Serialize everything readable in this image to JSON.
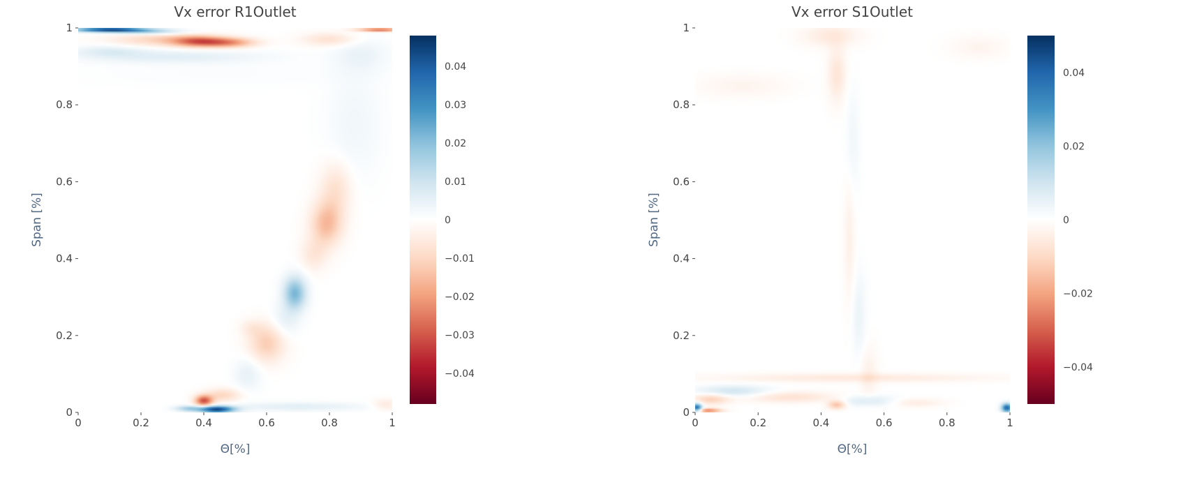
{
  "chart_data": [
    {
      "type": "heatmap",
      "title": "Vx error R1Outlet",
      "xlabel": "Θ[%]",
      "ylabel": "Span [%]",
      "xlim": [
        0,
        1
      ],
      "ylim": [
        0,
        1
      ],
      "x_ticks": [
        "0",
        "0.2",
        "0.4",
        "0.6",
        "0.8",
        "1"
      ],
      "y_ticks": [
        "0",
        "0.2",
        "0.4",
        "0.6",
        "0.8",
        "1"
      ],
      "colorscale": [
        "#67001f",
        "#b2182b",
        "#d6604d",
        "#f4a582",
        "#fddbc7",
        "#ffffff",
        "#d1e5f0",
        "#92c5de",
        "#4393c3",
        "#2166ac",
        "#053061"
      ],
      "zlim": [
        -0.048,
        0.048
      ],
      "colorbar_ticks": [
        {
          "value": 0.04,
          "label": "0.04"
        },
        {
          "value": 0.03,
          "label": "0.03"
        },
        {
          "value": 0.02,
          "label": "0.02"
        },
        {
          "value": 0.01,
          "label": "0.01"
        },
        {
          "value": 0,
          "label": "0"
        },
        {
          "value": -0.01,
          "label": "−0.01"
        },
        {
          "value": -0.02,
          "label": "−0.02"
        },
        {
          "value": -0.03,
          "label": "−0.03"
        },
        {
          "value": -0.04,
          "label": "−0.04"
        }
      ],
      "features": [
        {
          "x": 0.1,
          "y": 0.995,
          "v": 0.045,
          "sx": 0.08,
          "sy": 0.004
        },
        {
          "x": 0.22,
          "y": 0.99,
          "v": 0.015,
          "sx": 0.08,
          "sy": 0.005
        },
        {
          "x": 0.96,
          "y": 0.995,
          "v": -0.03,
          "sx": 0.05,
          "sy": 0.003
        },
        {
          "x": 0.38,
          "y": 0.965,
          "v": -0.025,
          "sx": 0.06,
          "sy": 0.01
        },
        {
          "x": 0.48,
          "y": 0.962,
          "v": -0.02,
          "sx": 0.06,
          "sy": 0.009
        },
        {
          "x": 0.25,
          "y": 0.97,
          "v": -0.01,
          "sx": 0.1,
          "sy": 0.012
        },
        {
          "x": 0.8,
          "y": 0.97,
          "v": -0.008,
          "sx": 0.06,
          "sy": 0.012
        },
        {
          "x": 0.3,
          "y": 0.925,
          "v": 0.006,
          "sx": 0.2,
          "sy": 0.012
        },
        {
          "x": 0.1,
          "y": 0.94,
          "v": 0.006,
          "sx": 0.08,
          "sy": 0.01
        },
        {
          "x": 0.9,
          "y": 0.93,
          "v": 0.004,
          "sx": 0.06,
          "sy": 0.03
        },
        {
          "x": 0.45,
          "y": 0.88,
          "v": 0.001,
          "sx": 0.3,
          "sy": 0.02
        },
        {
          "x": 0.79,
          "y": 0.49,
          "v": -0.015,
          "sx": 0.035,
          "sy": 0.04
        },
        {
          "x": 0.82,
          "y": 0.58,
          "v": -0.008,
          "sx": 0.035,
          "sy": 0.05
        },
        {
          "x": 0.75,
          "y": 0.41,
          "v": -0.006,
          "sx": 0.03,
          "sy": 0.03
        },
        {
          "x": 0.69,
          "y": 0.31,
          "v": 0.022,
          "sx": 0.025,
          "sy": 0.03
        },
        {
          "x": 0.66,
          "y": 0.24,
          "v": 0.005,
          "sx": 0.03,
          "sy": 0.03
        },
        {
          "x": 0.6,
          "y": 0.18,
          "v": -0.012,
          "sx": 0.04,
          "sy": 0.035
        },
        {
          "x": 0.54,
          "y": 0.1,
          "v": 0.005,
          "sx": 0.03,
          "sy": 0.03
        },
        {
          "x": 0.55,
          "y": 0.22,
          "v": -0.004,
          "sx": 0.025,
          "sy": 0.015
        },
        {
          "x": 0.44,
          "y": 0.008,
          "v": 0.045,
          "sx": 0.04,
          "sy": 0.006
        },
        {
          "x": 0.4,
          "y": 0.03,
          "v": -0.03,
          "sx": 0.02,
          "sy": 0.01
        },
        {
          "x": 0.46,
          "y": 0.045,
          "v": -0.01,
          "sx": 0.04,
          "sy": 0.012
        },
        {
          "x": 0.35,
          "y": 0.01,
          "v": 0.015,
          "sx": 0.03,
          "sy": 0.005
        },
        {
          "x": 0.7,
          "y": 0.015,
          "v": 0.006,
          "sx": 0.15,
          "sy": 0.008
        },
        {
          "x": 0.98,
          "y": 0.02,
          "v": -0.006,
          "sx": 0.03,
          "sy": 0.01
        },
        {
          "x": 0.88,
          "y": 0.75,
          "v": 0.003,
          "sx": 0.06,
          "sy": 0.1
        }
      ]
    },
    {
      "type": "heatmap",
      "title": "Vx error S1Outlet",
      "xlabel": "Θ[%]",
      "ylabel": "Span [%]",
      "xlim": [
        0,
        1
      ],
      "ylim": [
        0,
        1
      ],
      "x_ticks": [
        "0",
        "0.2",
        "0.4",
        "0.6",
        "0.8",
        "1"
      ],
      "y_ticks": [
        "0",
        "0.2",
        "0.4",
        "0.6",
        "0.8",
        "1"
      ],
      "colorscale": [
        "#67001f",
        "#b2182b",
        "#d6604d",
        "#f4a582",
        "#fddbc7",
        "#ffffff",
        "#d1e5f0",
        "#92c5de",
        "#4393c3",
        "#2166ac",
        "#053061"
      ],
      "zlim": [
        -0.05,
        0.05
      ],
      "colorbar_ticks": [
        {
          "value": 0.04,
          "label": "0.04"
        },
        {
          "value": 0.02,
          "label": "0.02"
        },
        {
          "value": 0,
          "label": "0"
        },
        {
          "value": -0.02,
          "label": "−0.02"
        },
        {
          "value": -0.04,
          "label": "−0.04"
        }
      ],
      "features": [
        {
          "x": 0.43,
          "y": 0.98,
          "v": -0.006,
          "sx": 0.06,
          "sy": 0.02
        },
        {
          "x": 0.45,
          "y": 0.88,
          "v": -0.007,
          "sx": 0.02,
          "sy": 0.05
        },
        {
          "x": 0.5,
          "y": 0.7,
          "v": 0.003,
          "sx": 0.015,
          "sy": 0.1
        },
        {
          "x": 0.49,
          "y": 0.45,
          "v": -0.004,
          "sx": 0.012,
          "sy": 0.12
        },
        {
          "x": 0.52,
          "y": 0.25,
          "v": 0.004,
          "sx": 0.015,
          "sy": 0.08
        },
        {
          "x": 0.55,
          "y": 0.1,
          "v": -0.004,
          "sx": 0.02,
          "sy": 0.05
        },
        {
          "x": 0.15,
          "y": 0.85,
          "v": -0.003,
          "sx": 0.1,
          "sy": 0.02
        },
        {
          "x": 0.9,
          "y": 0.95,
          "v": -0.003,
          "sx": 0.06,
          "sy": 0.02
        },
        {
          "x": 0.5,
          "y": 0.09,
          "v": -0.006,
          "sx": 0.3,
          "sy": 0.008
        },
        {
          "x": 0.12,
          "y": 0.055,
          "v": 0.01,
          "sx": 0.08,
          "sy": 0.01
        },
        {
          "x": 0.05,
          "y": 0.035,
          "v": -0.012,
          "sx": 0.04,
          "sy": 0.01
        },
        {
          "x": 0.3,
          "y": 0.04,
          "v": -0.008,
          "sx": 0.1,
          "sy": 0.01
        },
        {
          "x": 0.005,
          "y": 0.012,
          "v": 0.04,
          "sx": 0.012,
          "sy": 0.008
        },
        {
          "x": 0.04,
          "y": 0.005,
          "v": -0.025,
          "sx": 0.03,
          "sy": 0.004
        },
        {
          "x": 0.99,
          "y": 0.012,
          "v": 0.04,
          "sx": 0.012,
          "sy": 0.008
        },
        {
          "x": 0.55,
          "y": 0.03,
          "v": 0.008,
          "sx": 0.06,
          "sy": 0.01
        },
        {
          "x": 0.7,
          "y": 0.025,
          "v": -0.005,
          "sx": 0.06,
          "sy": 0.008
        },
        {
          "x": 0.45,
          "y": 0.02,
          "v": -0.015,
          "sx": 0.02,
          "sy": 0.008
        }
      ]
    }
  ]
}
